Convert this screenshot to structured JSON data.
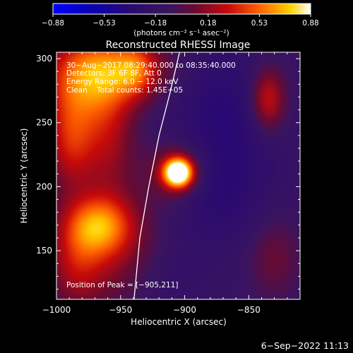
{
  "chart_data": {
    "type": "heatmap",
    "title": "Reconstructed RHESSI Image",
    "xlabel": "Heliocentric X (arcsec)",
    "ylabel": "Heliocentric Y (arcsec)",
    "xlim": [
      -1000,
      -990,
      -810
    ],
    "xlim_note": "",
    "x_range": [
      -1000,
      -810
    ],
    "y_range": [
      112,
      305
    ],
    "x_ticks": [
      -1000,
      -950,
      -900,
      -850
    ],
    "x_tick_labels": [
      "−1000",
      "−950",
      "−900",
      "−850"
    ],
    "y_ticks": [
      150,
      200,
      250,
      300
    ],
    "y_tick_labels": [
      "150",
      "200",
      "250",
      "300"
    ],
    "colorbar": {
      "range": [
        -0.88,
        0.88
      ],
      "ticks": [
        -0.88,
        -0.53,
        -0.18,
        0.18,
        0.53,
        0.88
      ],
      "tick_labels": [
        "−0.88",
        "−0.53",
        "−0.18",
        "0.18",
        "0.53",
        "0.88"
      ],
      "units_label": "(photons cm⁻² s⁻¹ asec⁻²)"
    },
    "annotations": [
      "30−Aug−2017 08:29:40.000 to 08:35:40.000",
      "Detectors: 3F 6F 8F, Att 0",
      "Energy Range: 6.0 − 12.0 keV",
      "Clean    Total counts: 1.45E+05"
    ],
    "peak_label": "Position of Peak = [−905,211]",
    "peak": {
      "x": -905,
      "y": 211,
      "value": 0.88
    },
    "sources": [
      {
        "x": -905,
        "y": 211,
        "sx": 8,
        "sy": 8,
        "amp": 1.25
      },
      {
        "x": -905,
        "y": 211,
        "sx": 18,
        "sy": 18,
        "amp": 0.35
      },
      {
        "x": -980,
        "y": 285,
        "sx": 22,
        "sy": 25,
        "amp": 0.55
      },
      {
        "x": -945,
        "y": 292,
        "sx": 25,
        "sy": 18,
        "amp": 0.45
      },
      {
        "x": -988,
        "y": 235,
        "sx": 14,
        "sy": 26,
        "amp": 0.45
      },
      {
        "x": -968,
        "y": 170,
        "sx": 18,
        "sy": 16,
        "amp": 0.55
      },
      {
        "x": -958,
        "y": 240,
        "sx": 14,
        "sy": 35,
        "amp": 0.3
      },
      {
        "x": -955,
        "y": 150,
        "sx": 25,
        "sy": 30,
        "amp": 0.3
      },
      {
        "x": -985,
        "y": 140,
        "sx": 15,
        "sy": 25,
        "amp": 0.3
      },
      {
        "x": -938,
        "y": 290,
        "sx": 10,
        "sy": 14,
        "amp": 0.25
      },
      {
        "x": -835,
        "y": 268,
        "sx": 10,
        "sy": 18,
        "amp": 0.5
      },
      {
        "x": -830,
        "y": 145,
        "sx": 14,
        "sy": 22,
        "amp": 0.2
      },
      {
        "x": -870,
        "y": 248,
        "sx": 30,
        "sy": 45,
        "amp": -0.25
      },
      {
        "x": -920,
        "y": 130,
        "sx": 25,
        "sy": 20,
        "amp": -0.1
      },
      {
        "x": -880,
        "y": 190,
        "sx": 25,
        "sy": 25,
        "amp": -0.15
      }
    ],
    "background": -0.12,
    "limb_points": [
      [
        -939.5,
        112
      ],
      [
        -935,
        160
      ],
      [
        -928,
        200
      ],
      [
        -920,
        240
      ],
      [
        -911,
        275
      ],
      [
        -904,
        305
      ]
    ]
  },
  "footer": {
    "timestamp": "6−Sep−2022 11:13"
  }
}
